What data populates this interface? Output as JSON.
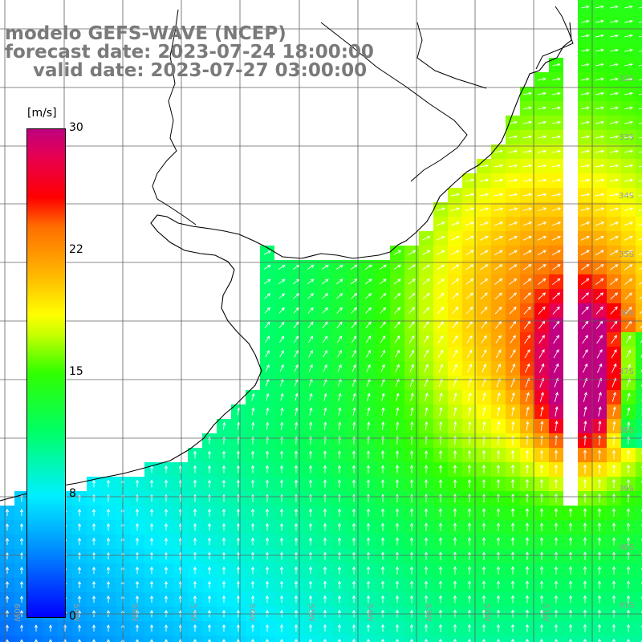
{
  "title": {
    "line1": "modelo GEFS-WAVE (NCEP)",
    "line2": "forecast date: 2023-07-24 18:00:00",
    "line3": "valid date: 2023-07-27 03:00:00"
  },
  "colorbar": {
    "unit": "[m/s]",
    "ticks": [
      "30",
      "22",
      "15",
      "8",
      "0"
    ],
    "range": [
      0,
      30
    ],
    "stops": [
      "#0000ff",
      "#0098ff",
      "#00f0ff",
      "#00ff66",
      "#30ff00",
      "#c8ff00",
      "#ffff00",
      "#ffb800",
      "#ff6e00",
      "#ff0000",
      "#e8004e",
      "#c00080"
    ]
  },
  "map": {
    "lat_labels": [
      "32S",
      "33S",
      "34S",
      "35S",
      "36S",
      "37S",
      "38S",
      "39S",
      "40S",
      "41S"
    ],
    "lon_labels": [
      "60W",
      "59W",
      "58W",
      "57W",
      "56W",
      "55W",
      "54W",
      "53W",
      "52W",
      "51W"
    ],
    "colors": {
      "land": "#ffffff",
      "grid": "#606060",
      "coast": "#000000",
      "arrow": "#ffffff"
    }
  }
}
